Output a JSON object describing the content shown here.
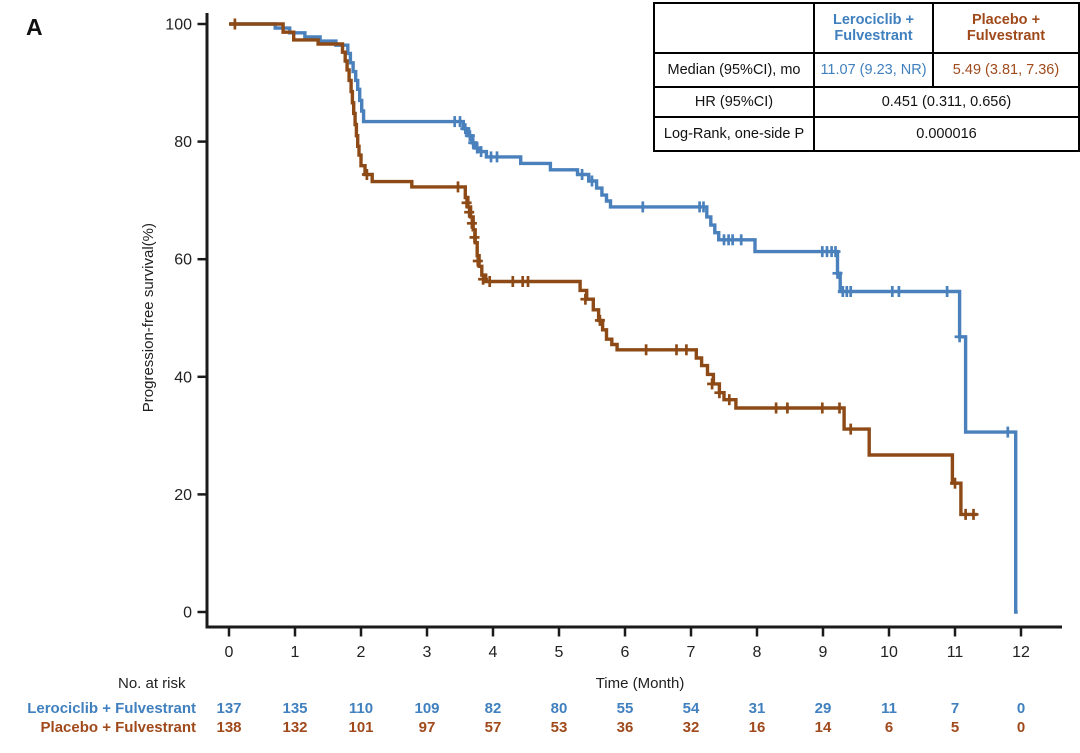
{
  "panel_label": "A",
  "colors": {
    "lerociclib_line": "#4a81bd",
    "placebo_line": "#8d4a16",
    "lerociclib_text": "#4080bf",
    "placebo_text": "#a04a1c",
    "axis": "#1a1a1a"
  },
  "stats_table": {
    "header_lerociclib": "Lerociclib +\nFulvestrant",
    "header_placebo": "Placebo +\nFulvestrant",
    "rows": [
      {
        "label": "Median (95%CI), mo",
        "lerociclib": "11.07 (9.23, NR)",
        "placebo": "5.49 (3.81, 7.36)"
      },
      {
        "label": "HR (95%CI)",
        "merged": "0.451 (0.311, 0.656)"
      },
      {
        "label": "Log-Rank, one-side P",
        "merged": "0.000016"
      }
    ]
  },
  "chart_data": {
    "type": "line",
    "subtype": "kaplan-meier-step",
    "title": "",
    "xlabel": "Time (Month)",
    "ylabel": "Progression-free survival(%)",
    "xlim": [
      0,
      12
    ],
    "ylim": [
      0,
      100
    ],
    "x_ticks": [
      0,
      1,
      2,
      3,
      4,
      5,
      6,
      7,
      8,
      9,
      10,
      11,
      12
    ],
    "y_ticks": [
      0,
      20,
      40,
      60,
      80,
      100
    ],
    "grid": false,
    "legend_position": "table-top-right",
    "series": [
      {
        "name": "Lerociclib + Fulvestrant",
        "color": "#4a81bd",
        "median_95ci": "11.07 (9.23, NR)",
        "start": [
          0,
          100
        ],
        "end_month": 11.95,
        "steps": [
          [
            0.7,
            99.3
          ],
          [
            0.92,
            98.5
          ],
          [
            1.15,
            97.8
          ],
          [
            1.38,
            97.1
          ],
          [
            1.62,
            96.4
          ],
          [
            1.8,
            95.0
          ],
          [
            1.84,
            93.4
          ],
          [
            1.88,
            91.9
          ],
          [
            1.92,
            90.4
          ],
          [
            1.95,
            88.9
          ],
          [
            1.98,
            87.0
          ],
          [
            2.01,
            85.2
          ],
          [
            2.04,
            83.4
          ],
          [
            3.55,
            82.2
          ],
          [
            3.62,
            81.0
          ],
          [
            3.68,
            79.8
          ],
          [
            3.73,
            78.9
          ],
          [
            3.79,
            78.3
          ],
          [
            3.9,
            77.4
          ],
          [
            4.42,
            76.3
          ],
          [
            4.87,
            75.2
          ],
          [
            5.28,
            74.4
          ],
          [
            5.45,
            73.3
          ],
          [
            5.57,
            72.1
          ],
          [
            5.65,
            70.9
          ],
          [
            5.72,
            69.9
          ],
          [
            5.78,
            68.9
          ],
          [
            7.24,
            67.2
          ],
          [
            7.3,
            65.8
          ],
          [
            7.36,
            64.5
          ],
          [
            7.42,
            63.3
          ],
          [
            7.97,
            61.3
          ],
          [
            9.22,
            57.6
          ],
          [
            9.26,
            54.5
          ],
          [
            11.07,
            46.8
          ],
          [
            11.16,
            30.6
          ],
          [
            11.92,
            0
          ]
        ],
        "censors": [
          [
            3.42,
            83.4
          ],
          [
            3.5,
            83.4
          ],
          [
            3.58,
            82.2
          ],
          [
            3.65,
            81.0
          ],
          [
            3.7,
            79.8
          ],
          [
            3.76,
            78.9
          ],
          [
            3.82,
            78.3
          ],
          [
            3.97,
            77.4
          ],
          [
            4.06,
            77.4
          ],
          [
            5.35,
            74.4
          ],
          [
            5.5,
            73.3
          ],
          [
            6.27,
            68.9
          ],
          [
            7.13,
            68.9
          ],
          [
            7.19,
            68.9
          ],
          [
            7.5,
            63.3
          ],
          [
            7.57,
            63.3
          ],
          [
            7.63,
            63.3
          ],
          [
            7.76,
            63.3
          ],
          [
            8.99,
            61.3
          ],
          [
            9.06,
            61.3
          ],
          [
            9.13,
            61.3
          ],
          [
            9.19,
            61.3
          ],
          [
            9.22,
            57.6
          ],
          [
            9.3,
            54.5
          ],
          [
            9.36,
            54.5
          ],
          [
            9.42,
            54.5
          ],
          [
            10.05,
            54.5
          ],
          [
            10.15,
            54.5
          ],
          [
            10.88,
            54.5
          ],
          [
            11.07,
            46.8
          ],
          [
            11.8,
            30.6
          ]
        ]
      },
      {
        "name": "Placebo + Fulvestrant",
        "color": "#8d4a16",
        "median_95ci": "5.49 (3.81, 7.36)",
        "start": [
          0,
          100
        ],
        "end_month": 11.33,
        "steps": [
          [
            0.82,
            98.6
          ],
          [
            0.98,
            97.3
          ],
          [
            1.35,
            96.6
          ],
          [
            1.72,
            95.2
          ],
          [
            1.76,
            93.7
          ],
          [
            1.79,
            92.2
          ],
          [
            1.82,
            90.4
          ],
          [
            1.85,
            88.5
          ],
          [
            1.87,
            86.6
          ],
          [
            1.89,
            84.8
          ],
          [
            1.91,
            82.9
          ],
          [
            1.93,
            81.0
          ],
          [
            1.95,
            79.2
          ],
          [
            1.97,
            77.7
          ],
          [
            2.0,
            75.9
          ],
          [
            2.06,
            74.4
          ],
          [
            2.17,
            73.2
          ],
          [
            2.77,
            72.3
          ],
          [
            3.58,
            70.5
          ],
          [
            3.62,
            68.9
          ],
          [
            3.66,
            67.2
          ],
          [
            3.7,
            65.0
          ],
          [
            3.73,
            62.8
          ],
          [
            3.76,
            60.6
          ],
          [
            3.79,
            58.8
          ],
          [
            3.83,
            57.3
          ],
          [
            3.89,
            56.2
          ],
          [
            5.32,
            54.7
          ],
          [
            5.42,
            53.2
          ],
          [
            5.52,
            51.4
          ],
          [
            5.6,
            49.6
          ],
          [
            5.66,
            48.0
          ],
          [
            5.72,
            46.4
          ],
          [
            5.8,
            45.5
          ],
          [
            5.88,
            44.6
          ],
          [
            7.08,
            43.2
          ],
          [
            7.16,
            41.9
          ],
          [
            7.25,
            40.4
          ],
          [
            7.34,
            38.8
          ],
          [
            7.43,
            37.3
          ],
          [
            7.5,
            36.1
          ],
          [
            7.68,
            34.7
          ],
          [
            9.32,
            31.1
          ],
          [
            9.7,
            26.7
          ],
          [
            10.96,
            21.9
          ],
          [
            11.09,
            16.6
          ]
        ],
        "censors": [
          [
            0.09,
            100
          ],
          [
            2.09,
            74.4
          ],
          [
            3.47,
            72.3
          ],
          [
            3.6,
            69.6
          ],
          [
            3.64,
            68.0
          ],
          [
            3.68,
            66.1
          ],
          [
            3.72,
            63.7
          ],
          [
            3.77,
            59.7
          ],
          [
            3.85,
            56.6
          ],
          [
            3.95,
            56.2
          ],
          [
            4.3,
            56.2
          ],
          [
            4.45,
            56.2
          ],
          [
            4.53,
            56.2
          ],
          [
            5.4,
            53.2
          ],
          [
            5.62,
            49.6
          ],
          [
            6.32,
            44.6
          ],
          [
            6.78,
            44.6
          ],
          [
            6.93,
            44.6
          ],
          [
            7.32,
            38.8
          ],
          [
            7.43,
            37.3
          ],
          [
            7.58,
            36.1
          ],
          [
            8.29,
            34.7
          ],
          [
            8.46,
            34.7
          ],
          [
            8.99,
            34.7
          ],
          [
            9.25,
            34.7
          ],
          [
            9.42,
            31.1
          ],
          [
            11.0,
            21.9
          ],
          [
            11.16,
            16.6
          ],
          [
            11.28,
            16.6
          ]
        ]
      }
    ]
  },
  "risk_table": {
    "title": "No. at risk",
    "time_label": "Time (Month)",
    "months": [
      0,
      1,
      2,
      3,
      4,
      5,
      6,
      7,
      8,
      9,
      10,
      11,
      12
    ],
    "rows": [
      {
        "label": "Lerociclib + Fulvestrant",
        "color": "#4080bf",
        "counts": [
          137,
          135,
          110,
          109,
          82,
          80,
          55,
          54,
          31,
          29,
          11,
          7,
          0
        ]
      },
      {
        "label": "Placebo + Fulvestrant",
        "color": "#a04a1c",
        "counts": [
          138,
          132,
          101,
          97,
          57,
          53,
          36,
          32,
          16,
          14,
          6,
          5,
          0
        ]
      }
    ]
  }
}
